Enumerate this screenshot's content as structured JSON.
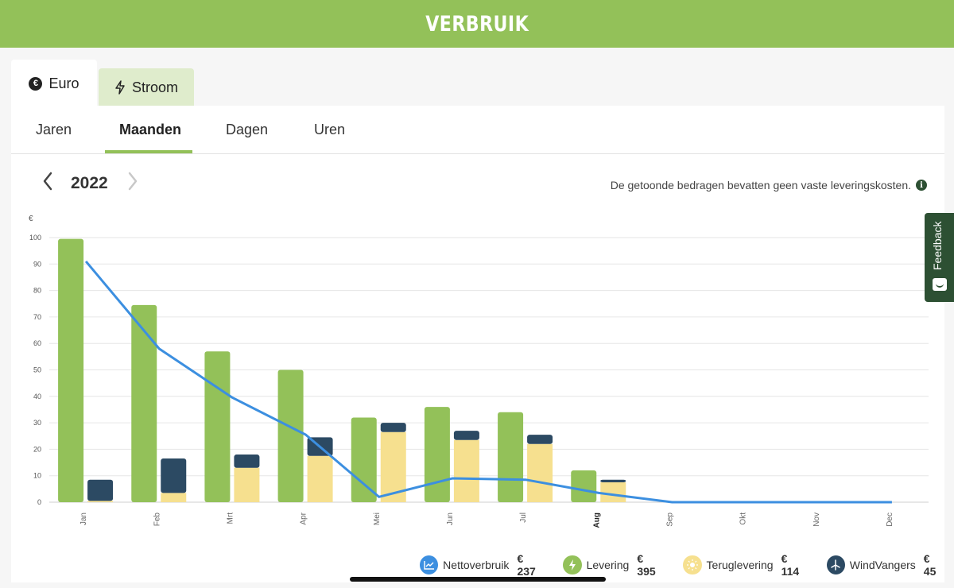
{
  "header": {
    "title": "VERBRUIK"
  },
  "unit_tabs": [
    {
      "label": "Euro",
      "active": true,
      "icon": "euro-icon"
    },
    {
      "label": "Stroom",
      "active": false,
      "icon": "lightning-icon"
    }
  ],
  "period_tabs": [
    {
      "label": "Jaren",
      "active": false
    },
    {
      "label": "Maanden",
      "active": true
    },
    {
      "label": "Dagen",
      "active": false
    },
    {
      "label": "Uren",
      "active": false
    }
  ],
  "period": {
    "year": "2022"
  },
  "note": "De getoonde bedragen bevatten geen vaste leveringskosten.",
  "feedback": {
    "label": "Feedback"
  },
  "legend": [
    {
      "label": "Nettoverbruik",
      "value": "€ 237",
      "color": "#3c8fe0",
      "icon": "line-chart-icon"
    },
    {
      "label": "Levering",
      "value": "€ 395",
      "color": "#93c159",
      "icon": "lightning-icon"
    },
    {
      "label": "Teruglevering",
      "value": "€ 114",
      "color": "#f6e08f",
      "icon": "sun-icon"
    },
    {
      "label": "WindVangers",
      "value": "€ 45",
      "color": "#2c4a63",
      "icon": "wind-turbine-icon"
    }
  ],
  "chart_data": {
    "type": "bar",
    "ylabel": "€",
    "ylim": [
      0,
      100
    ],
    "yticks": [
      0,
      10,
      20,
      30,
      40,
      50,
      60,
      70,
      80,
      90,
      100
    ],
    "categories": [
      "Jan",
      "Feb",
      "Mrt",
      "Apr",
      "Mei",
      "Jun",
      "Jul",
      "Aug",
      "Sep",
      "Okt",
      "Nov",
      "Dec"
    ],
    "highlight_category": "Aug",
    "grid": true,
    "series": [
      {
        "name": "Levering",
        "type": "bar",
        "color": "#93c159",
        "values": [
          99.5,
          74.5,
          57,
          50,
          32,
          36,
          34,
          12,
          0,
          0,
          0,
          0
        ]
      },
      {
        "name": "Teruglevering",
        "type": "bar",
        "stack": "b",
        "color": "#f6e08f",
        "values": [
          0.5,
          3.5,
          13,
          17.5,
          26.5,
          23.5,
          22,
          7.5,
          0,
          0,
          0,
          0
        ]
      },
      {
        "name": "WindVangers",
        "type": "bar",
        "stack": "b",
        "color": "#2c4a63",
        "values": [
          8,
          13,
          5,
          7,
          3.5,
          3.5,
          3.5,
          1,
          0,
          0,
          0,
          0
        ]
      },
      {
        "name": "Nettoverbruik",
        "type": "line",
        "color": "#3c8fe0",
        "values": [
          91,
          58,
          39.5,
          25.5,
          2,
          9,
          8.5,
          3.5,
          0,
          0,
          0,
          0
        ]
      }
    ]
  }
}
